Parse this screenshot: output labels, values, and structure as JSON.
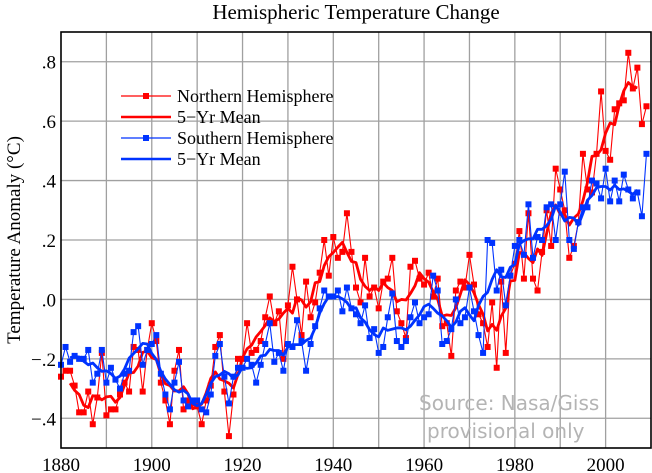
{
  "chart_data": {
    "type": "line",
    "title": "Hemispheric Temperature Change",
    "xlabel": "",
    "ylabel": "Temperature Anomaly (°C)",
    "xlim": [
      1880,
      2010
    ],
    "ylim": [
      -0.5,
      0.9
    ],
    "grid": true,
    "x_gridlines_every": 10,
    "y_gridlines_every": 0.2,
    "x_ticks": [
      1880,
      1900,
      1920,
      1940,
      1960,
      1980,
      2000
    ],
    "x_tick_labels": [
      "1880",
      "1900",
      "1920",
      "1940",
      "1960",
      "1980",
      "2000"
    ],
    "y_ticks": [
      -0.4,
      -0.2,
      0.0,
      0.2,
      0.4,
      0.6,
      0.8
    ],
    "y_tick_labels": [
      "−.4",
      "−.2",
      ".0",
      ".2",
      ".4",
      ".6",
      ".8"
    ],
    "legend_position": "top-left",
    "legend": [
      {
        "label": "Northern Hemisphere",
        "color": "#ff0000",
        "style": "thin-with-markers"
      },
      {
        "label": "5−Yr Mean",
        "color": "#ff0000",
        "style": "thick"
      },
      {
        "label": "Southern Hemisphere",
        "color": "#0033ff",
        "style": "thin-with-markers"
      },
      {
        "label": "5−Yr Mean",
        "color": "#0033ff",
        "style": "thick"
      }
    ],
    "annotation": [
      "Source: Nasa/Giss",
      "provisional only"
    ],
    "series": [
      {
        "name": "Northern Hemisphere",
        "color": "#ff0000",
        "x_start": 1880,
        "values": [
          -0.26,
          -0.24,
          -0.24,
          -0.29,
          -0.38,
          -0.38,
          -0.31,
          -0.42,
          -0.33,
          -0.18,
          -0.39,
          -0.37,
          -0.37,
          -0.32,
          -0.28,
          -0.31,
          -0.16,
          -0.17,
          -0.31,
          -0.17,
          -0.08,
          -0.14,
          -0.28,
          -0.34,
          -0.42,
          -0.24,
          -0.17,
          -0.37,
          -0.34,
          -0.35,
          -0.36,
          -0.42,
          -0.34,
          -0.29,
          -0.16,
          -0.12,
          -0.31,
          -0.46,
          -0.32,
          -0.2,
          -0.2,
          -0.08,
          -0.18,
          -0.17,
          -0.14,
          -0.06,
          0.01,
          -0.08,
          -0.04,
          -0.2,
          -0.02,
          0.11,
          0.0,
          -0.12,
          0.06,
          -0.06,
          -0.01,
          0.09,
          0.2,
          0.08,
          0.21,
          0.14,
          0.16,
          0.29,
          0.16,
          0.04,
          -0.01,
          0.14,
          0.01,
          0.04,
          -0.03,
          0.06,
          0.07,
          0.14,
          -0.04,
          -0.08,
          -0.13,
          0.11,
          0.13,
          0.07,
          0.05,
          0.09,
          0.01,
          0.07,
          -0.09,
          -0.08,
          -0.19,
          0.03,
          0.06,
          0.04,
          0.15,
          0.05,
          -0.05,
          -0.08,
          -0.16,
          -0.01,
          -0.23,
          0.06,
          -0.18,
          0.08,
          0.12,
          0.23,
          0.07,
          0.29,
          0.07,
          0.03,
          0.16,
          0.3,
          0.18,
          0.44,
          0.37,
          0.3,
          0.14,
          0.18,
          0.26,
          0.49,
          0.37,
          0.36,
          0.49,
          0.7,
          0.5,
          0.47,
          0.64,
          0.66,
          0.67,
          0.83,
          0.71,
          0.78,
          0.59,
          0.65
        ]
      },
      {
        "name": "Southern Hemisphere",
        "color": "#0033ff",
        "x_start": 1880,
        "values": [
          -0.22,
          -0.16,
          -0.21,
          -0.19,
          -0.2,
          -0.2,
          -0.17,
          -0.28,
          -0.25,
          -0.17,
          -0.28,
          -0.23,
          -0.27,
          -0.3,
          -0.25,
          -0.24,
          -0.11,
          -0.09,
          -0.22,
          -0.17,
          -0.15,
          -0.12,
          -0.25,
          -0.32,
          -0.37,
          -0.28,
          -0.21,
          -0.34,
          -0.36,
          -0.34,
          -0.34,
          -0.37,
          -0.38,
          -0.32,
          -0.19,
          -0.15,
          -0.26,
          -0.35,
          -0.26,
          -0.23,
          -0.23,
          -0.2,
          -0.22,
          -0.28,
          -0.22,
          -0.15,
          -0.08,
          -0.21,
          -0.18,
          -0.24,
          -0.15,
          -0.16,
          -0.07,
          -0.14,
          -0.24,
          -0.15,
          -0.09,
          -0.03,
          0.03,
          0.01,
          0.01,
          0.03,
          -0.04,
          0.04,
          -0.03,
          -0.05,
          -0.08,
          -0.02,
          -0.13,
          -0.1,
          -0.18,
          -0.16,
          -0.06,
          0.02,
          -0.14,
          -0.16,
          -0.14,
          -0.06,
          -0.01,
          -0.08,
          -0.06,
          -0.05,
          0.08,
          0.03,
          -0.15,
          -0.14,
          -0.1,
          0.0,
          -0.08,
          -0.06,
          0.04,
          -0.04,
          -0.12,
          -0.18,
          0.2,
          0.19,
          0.03,
          0.1,
          -0.02,
          0.08,
          0.18,
          0.2,
          0.15,
          0.32,
          0.14,
          0.21,
          0.2,
          0.31,
          0.32,
          0.2,
          0.32,
          0.43,
          0.2,
          0.17,
          0.26,
          0.31,
          0.31,
          0.4,
          0.39,
          0.34,
          0.44,
          0.33,
          0.4,
          0.33,
          0.42,
          0.37,
          0.34,
          0.36,
          0.28,
          0.49
        ]
      }
    ],
    "smoothing_window_years": 5
  }
}
